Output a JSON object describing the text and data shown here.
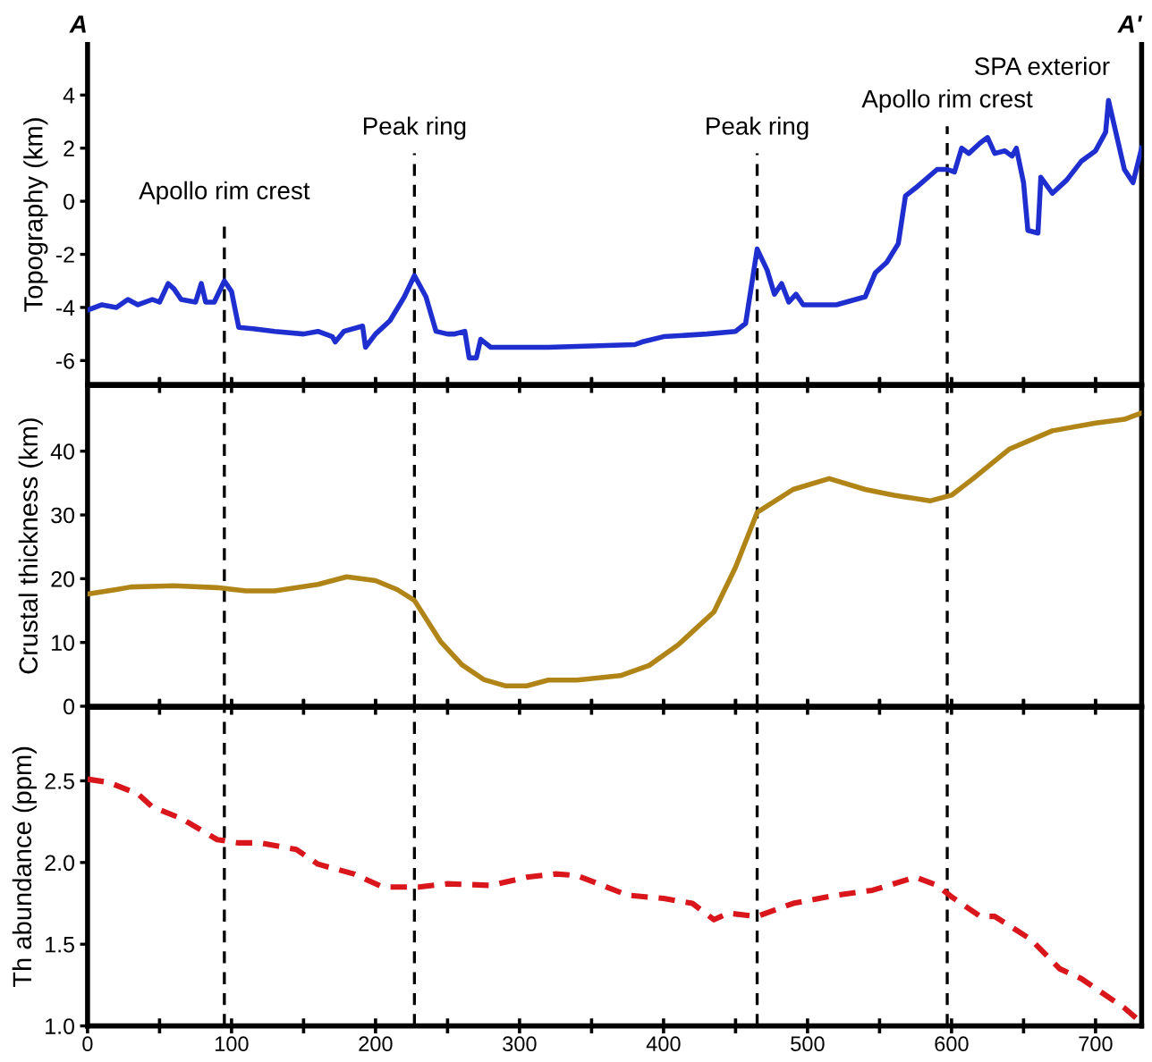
{
  "chart_data": [
    {
      "type": "line",
      "ylabel": "Topography (km)",
      "xlim": [
        0,
        732
      ],
      "ylim": [
        -6.9,
        5.9
      ],
      "yticks": [
        {
          "value": -6,
          "label": "-6"
        },
        {
          "value": -4,
          "label": "-4"
        },
        {
          "value": -2,
          "label": "-2"
        },
        0,
        2,
        4
      ],
      "xticks": [
        0,
        {
          "value": 50,
          "label": null
        },
        100,
        {
          "value": 150,
          "label": null
        },
        200,
        {
          "value": 250,
          "label": null
        },
        300,
        {
          "value": 350,
          "label": null
        },
        400,
        {
          "value": 450,
          "label": null
        },
        500,
        {
          "value": 550,
          "label": null
        },
        600,
        {
          "value": 650,
          "label": null
        },
        700
      ],
      "tick_labels": "y",
      "grid": false,
      "line_style": "solid",
      "marker": "none",
      "x": [
        0,
        10,
        20,
        28,
        35,
        45,
        50,
        56,
        60,
        65,
        75,
        79,
        82,
        88,
        95,
        100,
        105,
        115,
        130,
        150,
        160,
        170,
        172,
        178,
        191,
        193,
        200,
        210,
        220,
        227,
        235,
        242,
        250,
        255,
        262,
        265,
        270,
        273,
        280,
        320,
        380,
        385,
        400,
        430,
        450,
        457,
        465,
        472,
        477,
        482,
        487,
        492,
        497,
        520,
        540,
        547,
        555,
        563,
        568,
        575,
        590,
        597,
        602,
        607,
        612,
        620,
        625,
        630,
        637,
        642,
        645,
        650,
        653,
        660,
        662,
        670,
        680,
        690,
        700,
        707,
        709,
        720,
        726,
        732
      ],
      "series": [
        {
          "color": "#1f2fcf",
          "values": [
            -4.1,
            -3.9,
            -4.0,
            -3.7,
            -3.9,
            -3.7,
            -3.8,
            -3.1,
            -3.3,
            -3.7,
            -3.8,
            -3.1,
            -3.8,
            -3.8,
            -3.0,
            -3.4,
            -4.75,
            -4.8,
            -4.9,
            -5.0,
            -4.9,
            -5.1,
            -5.3,
            -4.9,
            -4.7,
            -5.5,
            -5.0,
            -4.5,
            -3.6,
            -2.8,
            -3.6,
            -4.9,
            -5.0,
            -5.0,
            -4.9,
            -5.9,
            -5.9,
            -5.2,
            -5.5,
            -5.5,
            -5.4,
            -5.3,
            -5.1,
            -5.0,
            -4.9,
            -4.6,
            -1.8,
            -2.6,
            -3.5,
            -3.1,
            -3.8,
            -3.5,
            -3.9,
            -3.9,
            -3.6,
            -2.7,
            -2.3,
            -1.6,
            0.2,
            0.5,
            1.2,
            1.2,
            1.1,
            2.0,
            1.8,
            2.2,
            2.4,
            1.8,
            1.9,
            1.7,
            2.0,
            0.7,
            -1.1,
            -1.2,
            0.9,
            0.3,
            0.8,
            1.5,
            1.9,
            2.6,
            3.8,
            1.2,
            0.7,
            2.0
          ]
        }
      ],
      "ref_lines": [
        {
          "axis": "x",
          "value": 95,
          "label": "Apollo rim crest",
          "color": "#000000",
          "line_style": "dashed"
        },
        {
          "axis": "x",
          "value": 227,
          "label": "Peak ring",
          "color": "#000000",
          "line_style": "dashed"
        },
        {
          "axis": "x",
          "value": 465,
          "label": "Peak ring",
          "color": "#000000",
          "line_style": "dashed"
        },
        {
          "axis": "x",
          "value": 597,
          "label": "Apollo rim crest",
          "color": "#000000",
          "line_style": "dashed"
        }
      ],
      "annotations": [
        "A",
        "A'",
        "SPA exterior"
      ]
    },
    {
      "type": "line",
      "ylabel": "Crustal thickness (km)",
      "xlim": [
        0,
        732
      ],
      "ylim": [
        0,
        50.3
      ],
      "yticks": [
        0,
        10,
        20,
        30,
        40
      ],
      "xticks": [
        0,
        {
          "value": 50,
          "label": null
        },
        100,
        {
          "value": 150,
          "label": null
        },
        200,
        {
          "value": 250,
          "label": null
        },
        300,
        {
          "value": 350,
          "label": null
        },
        400,
        {
          "value": 450,
          "label": null
        },
        500,
        {
          "value": 550,
          "label": null
        },
        600,
        {
          "value": 650,
          "label": null
        },
        700
      ],
      "tick_labels": "y",
      "grid": false,
      "line_style": "solid",
      "marker": "none",
      "x": [
        0,
        20,
        30,
        60,
        90,
        110,
        130,
        160,
        180,
        200,
        215,
        227,
        245,
        260,
        275,
        290,
        305,
        320,
        340,
        370,
        390,
        410,
        435,
        450,
        465,
        490,
        515,
        540,
        560,
        585,
        600,
        615,
        640,
        670,
        700,
        720,
        732
      ],
      "series": [
        {
          "color": "#b08417",
          "values": [
            17.6,
            18.3,
            18.7,
            18.9,
            18.6,
            18.1,
            18.1,
            19.1,
            20.3,
            19.7,
            18.3,
            16.6,
            10.2,
            6.5,
            4.2,
            3.2,
            3.2,
            4.1,
            4.1,
            4.8,
            6.4,
            9.6,
            14.8,
            21.8,
            30.4,
            34.0,
            35.7,
            34.0,
            33.1,
            32.2,
            33.1,
            35.7,
            40.3,
            43.2,
            44.4,
            45.0,
            46.0
          ]
        }
      ],
      "ref_lines": [
        {
          "axis": "x",
          "value": 95,
          "color": "#000000",
          "line_style": "dashed"
        },
        {
          "axis": "x",
          "value": 227,
          "color": "#000000",
          "line_style": "dashed"
        },
        {
          "axis": "x",
          "value": 465,
          "color": "#000000",
          "line_style": "dashed"
        },
        {
          "axis": "x",
          "value": 597,
          "color": "#000000",
          "line_style": "dashed"
        }
      ]
    },
    {
      "type": "line",
      "ylabel": "Th abundance (ppm)",
      "xlim": [
        0,
        732
      ],
      "ylim": [
        1.0,
        2.95
      ],
      "yticks": [
        {
          "value": 1.0,
          "label": "1.0"
        },
        1.5,
        {
          "value": 2.0,
          "label": "2.0"
        },
        2.5
      ],
      "xticks": [
        0,
        {
          "value": 50,
          "label": null
        },
        100,
        {
          "value": 150,
          "label": null
        },
        200,
        {
          "value": 250,
          "label": null
        },
        300,
        {
          "value": 350,
          "label": null
        },
        400,
        {
          "value": 450,
          "label": null
        },
        500,
        {
          "value": 550,
          "label": null
        },
        600,
        {
          "value": 650,
          "label": null
        },
        700
      ],
      "grid": false,
      "line_style": "dashed",
      "marker": "none",
      "x": [
        0,
        15,
        35,
        45,
        65,
        90,
        105,
        120,
        145,
        160,
        185,
        205,
        230,
        250,
        280,
        305,
        325,
        340,
        375,
        400,
        420,
        435,
        445,
        465,
        490,
        520,
        545,
        575,
        590,
        600,
        620,
        630,
        655,
        675,
        690,
        720,
        732
      ],
      "series": [
        {
          "color": "#d9161c",
          "values": [
            2.51,
            2.49,
            2.42,
            2.34,
            2.27,
            2.14,
            2.12,
            2.12,
            2.08,
            1.99,
            1.93,
            1.85,
            1.85,
            1.87,
            1.86,
            1.91,
            1.93,
            1.92,
            1.8,
            1.78,
            1.75,
            1.65,
            1.69,
            1.67,
            1.75,
            1.8,
            1.83,
            1.91,
            1.86,
            1.79,
            1.67,
            1.67,
            1.53,
            1.35,
            1.29,
            1.11,
            1.02
          ]
        }
      ],
      "ref_lines": [
        {
          "axis": "x",
          "value": 95,
          "color": "#000000",
          "line_style": "dashed"
        },
        {
          "axis": "x",
          "value": 227,
          "color": "#000000",
          "line_style": "dashed"
        },
        {
          "axis": "x",
          "value": 465,
          "color": "#000000",
          "line_style": "dashed"
        },
        {
          "axis": "x",
          "value": 597,
          "color": "#000000",
          "line_style": "dashed"
        }
      ]
    }
  ]
}
